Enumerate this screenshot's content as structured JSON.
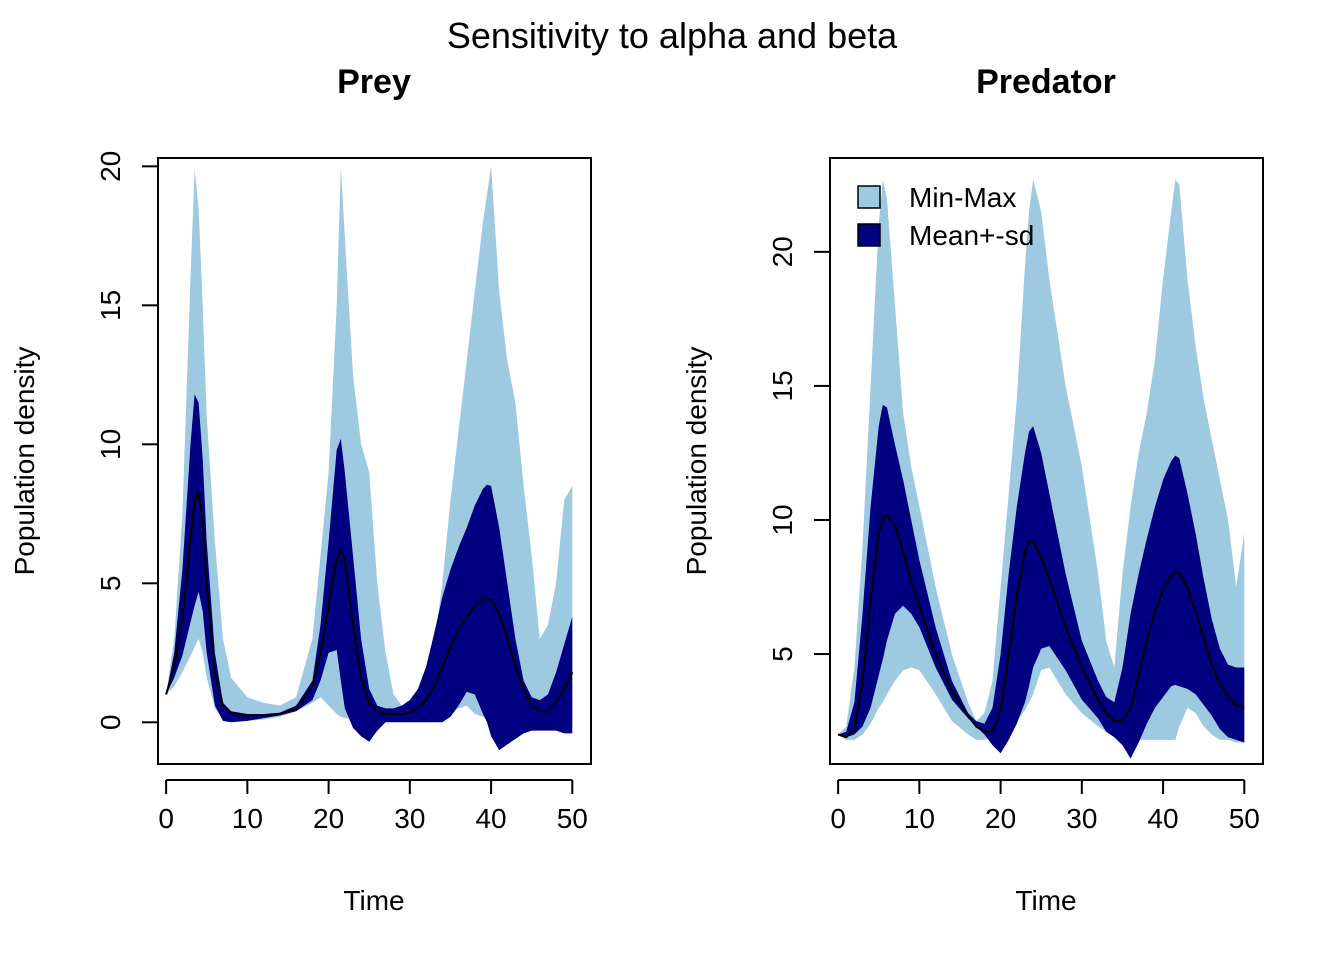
{
  "figure": {
    "title": "Sensitivity to alpha and beta"
  },
  "legend": {
    "items": [
      {
        "label": "Min-Max",
        "color": "#9ECAE1"
      },
      {
        "label": "Mean+-sd",
        "color": "#000080"
      }
    ],
    "placement": "top-left of Predator panel"
  },
  "colors": {
    "minmax": "#9ECAE1",
    "sd": "#000080",
    "mean_line": "#000000"
  },
  "chart_data": [
    {
      "type": "area",
      "title": "Prey",
      "xlabel": "Time",
      "ylabel": "Population density",
      "xlim": [
        -1,
        52.3
      ],
      "ylim": [
        -1.5,
        20.3
      ],
      "xticks": [
        0,
        10,
        20,
        30,
        40,
        50
      ],
      "yticks": [
        0,
        5,
        10,
        15,
        20
      ],
      "grid": false,
      "x": [
        0,
        1,
        2,
        3,
        3.5,
        4,
        4.5,
        5,
        6,
        7,
        8,
        10,
        12,
        14,
        16,
        18,
        19,
        20,
        21,
        21.5,
        22,
        23,
        24,
        25,
        26,
        27,
        28,
        29,
        30,
        31,
        32,
        33,
        34,
        35,
        36,
        37,
        38,
        39,
        39.5,
        40,
        41,
        42,
        43,
        44,
        45,
        46,
        47,
        48,
        49,
        50
      ],
      "series": [
        {
          "name": "Min-Max",
          "kind": "band",
          "lower": [
            1.0,
            1.3,
            1.8,
            2.4,
            2.7,
            3.0,
            2.5,
            1.6,
            0.5,
            0.1,
            0.05,
            0.05,
            0.1,
            0.2,
            0.4,
            0.7,
            0.9,
            0.6,
            0.3,
            0.2,
            0.15,
            0.1,
            0.08,
            0.05,
            0.05,
            0.05,
            0.08,
            0.1,
            0.1,
            0.15,
            0.2,
            0.25,
            0.3,
            0.4,
            0.5,
            0.6,
            0.3,
            0.2,
            0.1,
            0.05,
            0.05,
            0.05,
            0.05,
            0.05,
            0.05,
            0.05,
            0.05,
            0.05,
            0.05,
            0.05
          ],
          "upper": [
            1.0,
            3.0,
            7.5,
            16.0,
            19.9,
            18.5,
            15.0,
            11.0,
            6.5,
            3.0,
            1.6,
            0.9,
            0.7,
            0.6,
            0.9,
            3.0,
            6.0,
            9.0,
            15.0,
            20.0,
            17.5,
            12.5,
            10.0,
            9.0,
            5.0,
            2.5,
            1.0,
            0.6,
            0.5,
            0.6,
            1.2,
            2.8,
            5.0,
            8.0,
            10.5,
            13.0,
            15.5,
            18.0,
            19.0,
            20.0,
            15.5,
            13.0,
            11.5,
            8.5,
            6.0,
            3.0,
            3.5,
            5.0,
            8.0,
            8.5
          ]
        },
        {
          "name": "Mean+-sd",
          "kind": "band",
          "lower": [
            1.0,
            1.6,
            2.4,
            3.6,
            4.2,
            4.7,
            4.0,
            2.5,
            0.6,
            0.05,
            0.0,
            0.05,
            0.15,
            0.25,
            0.4,
            0.8,
            1.5,
            2.5,
            2.6,
            1.5,
            0.5,
            -0.2,
            -0.5,
            -0.7,
            -0.3,
            0.0,
            0.0,
            0.0,
            0.0,
            0.0,
            0.0,
            0.0,
            0.0,
            0.2,
            0.6,
            1.1,
            1.0,
            0.3,
            0.0,
            -0.5,
            -1.0,
            -0.8,
            -0.6,
            -0.4,
            -0.3,
            -0.3,
            -0.3,
            -0.3,
            -0.4,
            -0.4
          ],
          "upper": [
            1.0,
            2.5,
            5.5,
            10.0,
            11.8,
            11.5,
            9.5,
            6.5,
            2.5,
            0.7,
            0.4,
            0.3,
            0.3,
            0.35,
            0.6,
            1.5,
            3.5,
            6.5,
            9.8,
            10.2,
            9.0,
            6.0,
            3.0,
            1.2,
            0.6,
            0.5,
            0.5,
            0.6,
            0.8,
            1.2,
            2.0,
            3.2,
            4.5,
            5.5,
            6.3,
            7.0,
            7.8,
            8.4,
            8.55,
            8.5,
            7.0,
            5.0,
            3.0,
            1.5,
            0.9,
            0.8,
            1.0,
            1.8,
            2.8,
            3.8
          ]
        },
        {
          "name": "mean",
          "kind": "line",
          "values": [
            1.0,
            2.0,
            3.8,
            6.6,
            8.0,
            8.3,
            7.2,
            5.0,
            1.8,
            0.6,
            0.35,
            0.25,
            0.25,
            0.3,
            0.5,
            1.3,
            2.5,
            4.2,
            5.9,
            6.2,
            5.8,
            3.5,
            1.6,
            0.7,
            0.4,
            0.3,
            0.3,
            0.3,
            0.35,
            0.5,
            0.8,
            1.3,
            2.0,
            2.7,
            3.3,
            3.8,
            4.2,
            4.4,
            4.45,
            4.4,
            3.9,
            3.0,
            2.0,
            1.2,
            0.6,
            0.4,
            0.4,
            0.7,
            1.2,
            1.8
          ]
        }
      ]
    },
    {
      "type": "area",
      "title": "Predator",
      "xlabel": "Time",
      "ylabel": "Population density",
      "xlim": [
        -1,
        52.3
      ],
      "ylim": [
        0.9,
        23.5
      ],
      "xticks": [
        0,
        10,
        20,
        30,
        40,
        50
      ],
      "yticks": [
        5,
        10,
        15,
        20
      ],
      "grid": false,
      "x": [
        0,
        1,
        2,
        3,
        4,
        5,
        5.5,
        6,
        7,
        8,
        9,
        10,
        12,
        14,
        16,
        17,
        18,
        19,
        20,
        21,
        22,
        23,
        23.5,
        24,
        25,
        26,
        28,
        30,
        32,
        33,
        34,
        35,
        36,
        37,
        38,
        39,
        40,
        41,
        41.5,
        42,
        43,
        44,
        45,
        46,
        47,
        48,
        49,
        50
      ],
      "series": [
        {
          "name": "Min-Max",
          "kind": "band",
          "lower": [
            2.0,
            1.8,
            1.8,
            2.0,
            2.4,
            3.0,
            3.2,
            3.5,
            4.0,
            4.4,
            4.5,
            4.4,
            3.5,
            2.5,
            2.0,
            1.8,
            1.8,
            1.9,
            2.0,
            2.2,
            2.5,
            2.9,
            3.2,
            3.5,
            4.4,
            4.5,
            3.5,
            2.8,
            2.3,
            2.1,
            2.0,
            1.9,
            1.8,
            1.8,
            1.8,
            1.8,
            1.8,
            1.8,
            1.8,
            2.3,
            3.0,
            2.8,
            2.3,
            2.0,
            1.8,
            1.8,
            1.7,
            1.7
          ],
          "upper": [
            2.0,
            2.3,
            4.5,
            9.0,
            15.0,
            21.0,
            22.7,
            22.0,
            18.0,
            14.0,
            12.0,
            10.5,
            7.5,
            5.0,
            3.2,
            2.5,
            2.8,
            4.0,
            7.5,
            11.0,
            14.5,
            19.5,
            21.5,
            22.7,
            21.5,
            19.0,
            15.0,
            12.0,
            8.0,
            5.5,
            4.5,
            8.0,
            10.5,
            12.5,
            14.0,
            16.0,
            19.0,
            21.5,
            22.7,
            22.5,
            19.0,
            16.5,
            14.5,
            13.0,
            11.5,
            10.0,
            7.5,
            9.5
          ]
        },
        {
          "name": "Mean+-sd",
          "kind": "band",
          "lower": [
            2.0,
            1.9,
            2.0,
            2.3,
            3.0,
            4.2,
            4.8,
            5.5,
            6.5,
            6.8,
            6.5,
            6.0,
            4.5,
            3.3,
            2.6,
            2.3,
            2.0,
            1.6,
            1.3,
            1.8,
            2.4,
            3.2,
            3.8,
            4.5,
            5.2,
            5.3,
            4.4,
            3.3,
            2.6,
            2.1,
            1.9,
            1.6,
            1.1,
            1.7,
            2.4,
            3.0,
            3.4,
            3.8,
            3.85,
            3.8,
            3.7,
            3.5,
            3.1,
            2.7,
            2.2,
            1.9,
            1.8,
            1.7
          ],
          "upper": [
            2.0,
            2.1,
            3.2,
            6.5,
            10.5,
            13.5,
            14.3,
            14.2,
            12.8,
            11.5,
            10.0,
            8.5,
            6.0,
            4.0,
            2.8,
            2.5,
            2.4,
            3.0,
            5.0,
            8.0,
            10.5,
            12.5,
            13.3,
            13.5,
            12.5,
            11.0,
            8.0,
            5.5,
            4.0,
            3.4,
            3.2,
            4.5,
            6.5,
            8.0,
            9.3,
            10.5,
            11.5,
            12.2,
            12.4,
            12.3,
            11.0,
            9.5,
            7.8,
            6.3,
            5.2,
            4.6,
            4.5,
            4.5
          ]
        },
        {
          "name": "mean",
          "kind": "line",
          "values": [
            2.0,
            1.9,
            2.2,
            4.0,
            7.0,
            9.5,
            10.1,
            10.2,
            9.8,
            8.8,
            7.7,
            6.8,
            5.0,
            3.6,
            2.7,
            2.3,
            2.1,
            2.1,
            2.9,
            5.0,
            7.2,
            8.8,
            9.2,
            9.2,
            8.6,
            7.8,
            6.0,
            4.5,
            3.3,
            2.8,
            2.5,
            2.5,
            3.0,
            4.2,
            5.5,
            6.6,
            7.4,
            7.9,
            8.05,
            8.0,
            7.5,
            6.6,
            5.6,
            4.6,
            3.9,
            3.4,
            3.1,
            3.0
          ]
        }
      ]
    }
  ]
}
